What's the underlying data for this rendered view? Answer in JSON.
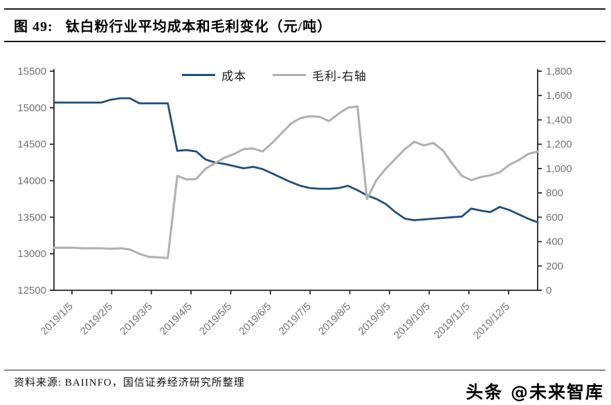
{
  "title": {
    "prefix": "图 49:",
    "text": "钛白粉行业平均成本和毛利变化（元/吨）"
  },
  "source_note": "资料来源: BAIINFO，国信证券经济研究所整理",
  "watermark": "头条 @未来智库",
  "colors": {
    "cost_line": "#1f4e79",
    "profit_line": "#b0b0b0",
    "axis_line": "#262626",
    "tick_label": "#737373",
    "title_text": "#000000"
  },
  "chart_data": {
    "type": "line",
    "title": "钛白粉行业平均成本和毛利变化（元/吨）",
    "grid": false,
    "legend_position": "top-center",
    "x": [
      "2019/1/5",
      "2019/1/12",
      "2019/1/19",
      "2019/1/26",
      "2019/2/2",
      "2019/2/9",
      "2019/2/16",
      "2019/2/23",
      "2019/3/2",
      "2019/3/9",
      "2019/3/16",
      "2019/3/23",
      "2019/3/30",
      "2019/4/6",
      "2019/4/13",
      "2019/4/20",
      "2019/4/27",
      "2019/5/4",
      "2019/5/11",
      "2019/5/18",
      "2019/5/25",
      "2019/6/1",
      "2019/6/8",
      "2019/6/15",
      "2019/6/22",
      "2019/6/29",
      "2019/7/6",
      "2019/7/13",
      "2019/7/20",
      "2019/7/27",
      "2019/8/3",
      "2019/8/10",
      "2019/8/17",
      "2019/8/24",
      "2019/8/31",
      "2019/9/7",
      "2019/9/14",
      "2019/9/21",
      "2019/9/28",
      "2019/10/5",
      "2019/10/12",
      "2019/10/19",
      "2019/10/26",
      "2019/11/2",
      "2019/11/9",
      "2019/11/16",
      "2019/11/23",
      "2019/11/30",
      "2019/12/7",
      "2019/12/14",
      "2019/12/21",
      "2019/12/28"
    ],
    "x_tick_labels": [
      "2019/1/5",
      "2019/2/5",
      "2019/3/5",
      "2019/4/5",
      "2019/5/5",
      "2019/6/5",
      "2019/7/5",
      "2019/8/5",
      "2019/9/5",
      "2019/10/5",
      "2019/11/5",
      "2019/12/5"
    ],
    "series": [
      {
        "name": "成本",
        "axis": "left",
        "color": "#1f4e79",
        "values": [
          15070,
          15070,
          15070,
          15070,
          15070,
          15070,
          15110,
          15130,
          15130,
          15060,
          15060,
          15060,
          15060,
          14410,
          14420,
          14400,
          14290,
          14250,
          14230,
          14200,
          14170,
          14190,
          14160,
          14100,
          14040,
          13980,
          13930,
          13900,
          13890,
          13890,
          13900,
          13930,
          13870,
          13800,
          13750,
          13680,
          13570,
          13480,
          13460,
          13470,
          13480,
          13490,
          13500,
          13510,
          13620,
          13590,
          13570,
          13640,
          13600,
          13540,
          13480,
          13430
        ]
      },
      {
        "name": "毛利-右轴",
        "axis": "right",
        "color": "#b0b0b0",
        "values": [
          350,
          350,
          350,
          345,
          345,
          345,
          340,
          345,
          335,
          300,
          275,
          270,
          265,
          940,
          910,
          915,
          1000,
          1045,
          1090,
          1120,
          1160,
          1165,
          1140,
          1210,
          1290,
          1370,
          1415,
          1430,
          1425,
          1390,
          1450,
          1500,
          1510,
          750,
          905,
          1000,
          1080,
          1160,
          1220,
          1190,
          1210,
          1150,
          1040,
          940,
          905,
          930,
          945,
          970,
          1030,
          1070,
          1120,
          1140
        ]
      }
    ],
    "left_axis": {
      "min": 12500,
      "max": 15500,
      "step": 500,
      "ticks": [
        "15500",
        "15000",
        "14500",
        "14000",
        "13500",
        "13000",
        "12500"
      ]
    },
    "right_axis": {
      "min": 0,
      "max": 1800,
      "step": 200,
      "ticks": [
        "1,800",
        "1,600",
        "1,400",
        "1,200",
        "1,000",
        "800",
        "600",
        "400",
        "200",
        "0"
      ]
    }
  }
}
